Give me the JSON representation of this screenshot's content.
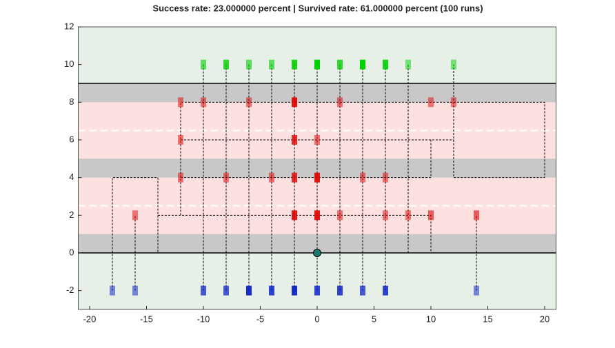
{
  "chart_data": {
    "type": "scatter",
    "title": "Success rate: 23.000000 percent | Survived rate: 61.000000 percent (100 runs)",
    "xlim": [
      -21,
      21
    ],
    "ylim": [
      -3,
      12
    ],
    "xticks": [
      -20,
      -15,
      -10,
      -5,
      0,
      5,
      10,
      15,
      20
    ],
    "yticks": [
      -2,
      0,
      2,
      4,
      6,
      8,
      10,
      12
    ],
    "background": "#e6f0e6",
    "regions": [
      {
        "y": [
          1,
          4
        ],
        "color": "#fde0e0"
      },
      {
        "y": [
          5,
          8
        ],
        "color": "#fde0e0"
      },
      {
        "y": [
          0,
          1
        ],
        "color": "#c8c8c8"
      },
      {
        "y": [
          4,
          5
        ],
        "color": "#c8c8c8"
      },
      {
        "y": [
          8,
          9
        ],
        "color": "#c8c8c8"
      }
    ],
    "dashed_lines": [
      2.5,
      6.5
    ],
    "solid_lines": [
      0,
      9
    ],
    "paths": [
      {
        "x": [
          -18,
          -18,
          -14,
          -14
        ],
        "y": [
          -2,
          4,
          4,
          0
        ]
      },
      {
        "x": [
          -16,
          -16
        ],
        "y": [
          -2,
          2
        ]
      },
      {
        "x": [
          -10,
          -10
        ],
        "y": [
          -2,
          10
        ]
      },
      {
        "x": [
          -8,
          -8
        ],
        "y": [
          -2,
          10
        ]
      },
      {
        "x": [
          -6,
          -6
        ],
        "y": [
          -2,
          10
        ]
      },
      {
        "x": [
          -4,
          -4
        ],
        "y": [
          -2,
          10
        ]
      },
      {
        "x": [
          -2,
          -2
        ],
        "y": [
          -2,
          10
        ]
      },
      {
        "x": [
          0,
          0
        ],
        "y": [
          -2,
          10
        ]
      },
      {
        "x": [
          2,
          2
        ],
        "y": [
          -2,
          10
        ]
      },
      {
        "x": [
          4,
          4
        ],
        "y": [
          -2,
          10
        ]
      },
      {
        "x": [
          6,
          6
        ],
        "y": [
          -2,
          10
        ]
      },
      {
        "x": [
          14,
          14
        ],
        "y": [
          -2,
          2
        ]
      },
      {
        "x": [
          -12,
          -12,
          20,
          20,
          12,
          12
        ],
        "y": [
          2,
          8,
          8,
          4,
          4,
          10
        ]
      },
      {
        "x": [
          -14,
          10,
          10
        ],
        "y": [
          2,
          2,
          0
        ]
      },
      {
        "x": [
          -12,
          12
        ],
        "y": [
          6,
          6
        ]
      },
      {
        "x": [
          8,
          8
        ],
        "y": [
          0,
          10
        ]
      },
      {
        "x": [
          -12,
          10,
          10
        ],
        "y": [
          4,
          4,
          6
        ]
      }
    ],
    "series": [
      {
        "color": "#00d000",
        "x": [
          -10,
          -8,
          -6,
          -4,
          -2,
          0,
          2,
          4,
          6,
          8,
          12
        ],
        "values": [
          10,
          10,
          10,
          10,
          10,
          10,
          10,
          10,
          10,
          10,
          10
        ],
        "alpha": [
          0.6,
          0.8,
          0.6,
          0.6,
          0.9,
          1,
          0.8,
          1,
          0.9,
          0.5,
          0.5
        ]
      },
      {
        "color": "#0018c8",
        "x": [
          -18,
          -16,
          -10,
          -8,
          -6,
          -4,
          -2,
          0,
          2,
          4,
          6,
          14
        ],
        "values": [
          -2,
          -2,
          -2,
          -2,
          -2,
          -2,
          -2,
          -2,
          -2,
          -2,
          -2,
          -2
        ],
        "alpha": [
          0.5,
          0.5,
          0.7,
          0.7,
          0.9,
          0.8,
          0.9,
          0.8,
          0.8,
          0.7,
          0.8,
          0.5
        ]
      },
      {
        "color": "#e00000",
        "x": [
          -12,
          -10,
          -6,
          -2,
          2,
          10,
          12
        ],
        "values": [
          8,
          8,
          8,
          8,
          8,
          8,
          8
        ],
        "alpha": [
          0.5,
          0.5,
          0.5,
          0.9,
          0.5,
          0.5,
          0.5
        ]
      },
      {
        "color": "#e00000",
        "x": [
          -12,
          -2,
          0
        ],
        "values": [
          6,
          6,
          6
        ],
        "alpha": [
          0.5,
          0.8,
          0.5
        ]
      },
      {
        "color": "#e00000",
        "x": [
          -12,
          -8,
          -4,
          -2,
          0,
          4,
          6
        ],
        "values": [
          4,
          4,
          4,
          4,
          4,
          4,
          4
        ],
        "alpha": [
          0.5,
          0.5,
          0.5,
          0.8,
          0.9,
          0.5,
          0.5
        ]
      },
      {
        "color": "#e00000",
        "x": [
          -16,
          -2,
          0,
          2,
          6,
          8,
          10,
          14
        ],
        "values": [
          2,
          2,
          2,
          2,
          2,
          2,
          2,
          2
        ],
        "alpha": [
          0.5,
          0.9,
          0.9,
          0.5,
          0.5,
          0.5,
          0.6,
          0.6
        ]
      }
    ],
    "agent": {
      "color": "#1a7a70",
      "x": [
        0
      ],
      "values": [
        0
      ]
    }
  }
}
